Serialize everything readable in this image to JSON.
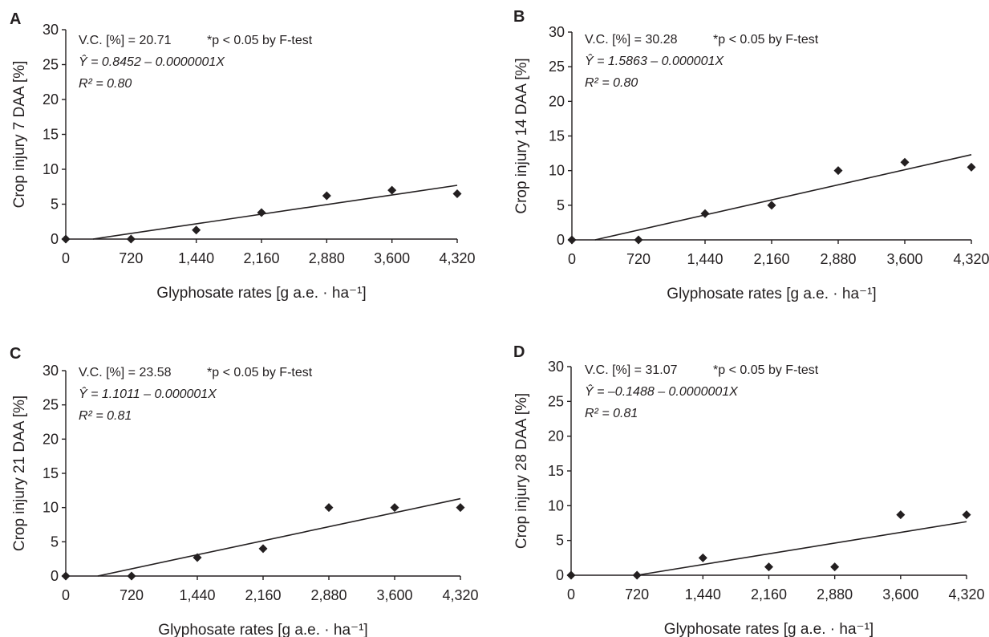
{
  "chart_data": [
    {
      "type": "scatter",
      "panel": "A",
      "xlabel": "Glyphosate rates [g a.e. · ha⁻¹]",
      "ylabel": "Crop injury 7 DAA [%]",
      "x_ticks": [
        "0",
        "720",
        "1,440",
        "2,160",
        "2,880",
        "3,600",
        "4,320"
      ],
      "y_ticks": [
        "0",
        "5",
        "10",
        "15",
        "20",
        "25",
        "30"
      ],
      "xlim": [
        0,
        4320
      ],
      "ylim": [
        0,
        30
      ],
      "x": [
        0,
        720,
        1440,
        2160,
        2880,
        3600,
        4320
      ],
      "y": [
        0,
        0,
        1.3,
        3.8,
        6.2,
        7.0,
        6.5
      ],
      "fit_line": [
        [
          300,
          0
        ],
        [
          4320,
          7.7
        ]
      ],
      "annotations": {
        "vc": "V.C. [%] = 20.71",
        "sig": "*p < 0.05 by F-test",
        "equation": "Ŷ = 0.8452 – 0.0000001X",
        "r2": "R² = 0.80"
      }
    },
    {
      "type": "scatter",
      "panel": "B",
      "xlabel": "Glyphosate rates [g a.e. · ha⁻¹]",
      "ylabel": "Crop injury 14 DAA [%]",
      "x_ticks": [
        "0",
        "720",
        "1,440",
        "2,160",
        "2,880",
        "3,600",
        "4,320"
      ],
      "y_ticks": [
        "0",
        "5",
        "10",
        "15",
        "20",
        "25",
        "30"
      ],
      "xlim": [
        0,
        4320
      ],
      "ylim": [
        0,
        30
      ],
      "x": [
        0,
        720,
        1440,
        2160,
        2880,
        3600,
        4320
      ],
      "y": [
        0,
        0,
        3.8,
        5.0,
        10.0,
        11.2,
        10.5
      ],
      "fit_line": [
        [
          250,
          0
        ],
        [
          4320,
          12.3
        ]
      ],
      "annotations": {
        "vc": "V.C. [%] = 30.28",
        "sig": "*p < 0.05 by F-test",
        "equation": "Ŷ = 1.5863 – 0.000001X",
        "r2": "R² = 0.80"
      }
    },
    {
      "type": "scatter",
      "panel": "C",
      "xlabel": "Glyphosate rates [g a.e. · ha⁻¹]",
      "ylabel": "Crop injury 21 DAA [%]",
      "x_ticks": [
        "0",
        "720",
        "1,440",
        "2,160",
        "2,880",
        "3,600",
        "4,320"
      ],
      "y_ticks": [
        "0",
        "5",
        "10",
        "15",
        "20",
        "25",
        "30"
      ],
      "xlim": [
        0,
        4320
      ],
      "ylim": [
        0,
        30
      ],
      "x": [
        0,
        720,
        1440,
        2160,
        2880,
        3600,
        4320
      ],
      "y": [
        0,
        0,
        2.7,
        4.0,
        10.0,
        10.0,
        10.0
      ],
      "fit_line": [
        [
          350,
          0
        ],
        [
          4320,
          11.3
        ]
      ],
      "annotations": {
        "vc": "V.C. [%] = 23.58",
        "sig": "*p < 0.05 by F-test",
        "equation": "Ŷ = 1.1011 – 0.000001X",
        "r2": "R² = 0.81"
      }
    },
    {
      "type": "scatter",
      "panel": "D",
      "xlabel": "Glyphosate rates [g a.e. · ha⁻¹]",
      "ylabel": "Crop injury 28 DAA [%]",
      "x_ticks": [
        "0",
        "720",
        "1,440",
        "2,160",
        "2,880",
        "3,600",
        "4,320"
      ],
      "y_ticks": [
        "0",
        "5",
        "10",
        "15",
        "20",
        "25",
        "30"
      ],
      "xlim": [
        0,
        4320
      ],
      "ylim": [
        0,
        30
      ],
      "x": [
        0,
        720,
        1440,
        2160,
        2880,
        3600,
        4320
      ],
      "y": [
        0,
        0,
        2.5,
        1.2,
        1.2,
        8.7,
        8.7
      ],
      "fit_line": [
        [
          720,
          0
        ],
        [
          4320,
          7.7
        ]
      ],
      "annotations": {
        "vc": "V.C. [%] = 31.07",
        "sig": "*p < 0.05 by F-test",
        "equation": "Ŷ = –0.1488 – 0.0000001X",
        "r2": "R² = 0.81"
      }
    }
  ]
}
